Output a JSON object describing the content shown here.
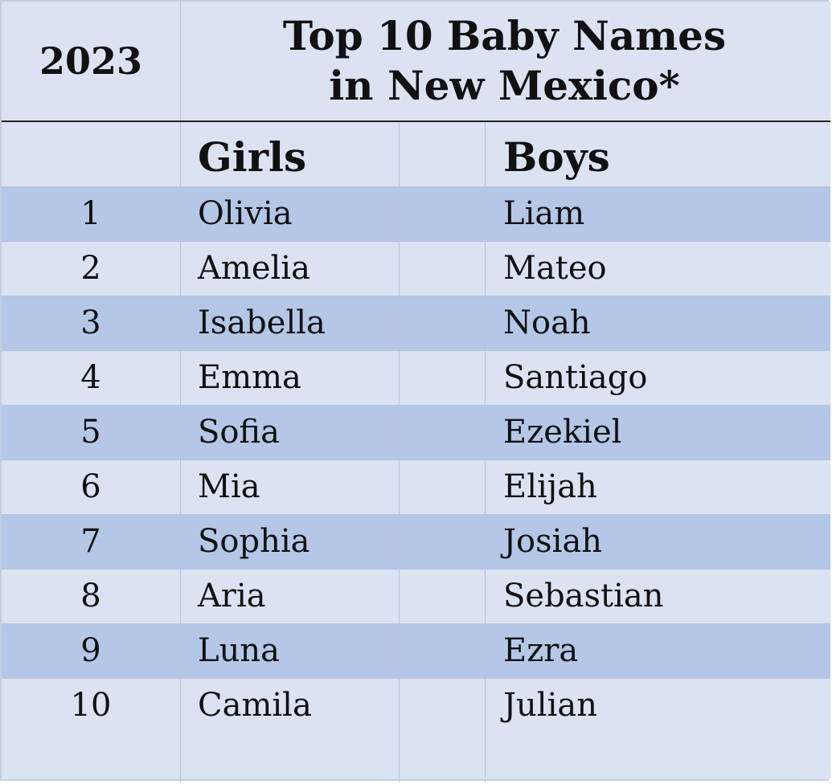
{
  "table": {
    "year": "2023",
    "title_line1": "Top 10 Baby Names",
    "title_line2": "in New Mexico*",
    "col_girls": "Girls",
    "col_boys": "Boys",
    "rows": [
      {
        "rank": "1",
        "girl": "Olivia",
        "boy": "Liam"
      },
      {
        "rank": "2",
        "girl": "Amelia",
        "boy": "Mateo"
      },
      {
        "rank": "3",
        "girl": "Isabella",
        "boy": "Noah"
      },
      {
        "rank": "4",
        "girl": "Emma",
        "boy": "Santiago"
      },
      {
        "rank": "5",
        "girl": "Sofia",
        "boy": "Ezekiel"
      },
      {
        "rank": "6",
        "girl": "Mia",
        "boy": "Elijah"
      },
      {
        "rank": "7",
        "girl": "Sophia",
        "boy": "Josiah"
      },
      {
        "rank": "8",
        "girl": "Aria",
        "boy": "Sebastian"
      },
      {
        "rank": "9",
        "girl": "Luna",
        "boy": "Ezra"
      },
      {
        "rank": "10",
        "girl": "Camila",
        "boy": "Julian"
      }
    ],
    "colors": {
      "band_dark": "#b4c7e7",
      "band_light": "#dbe2f2"
    }
  }
}
